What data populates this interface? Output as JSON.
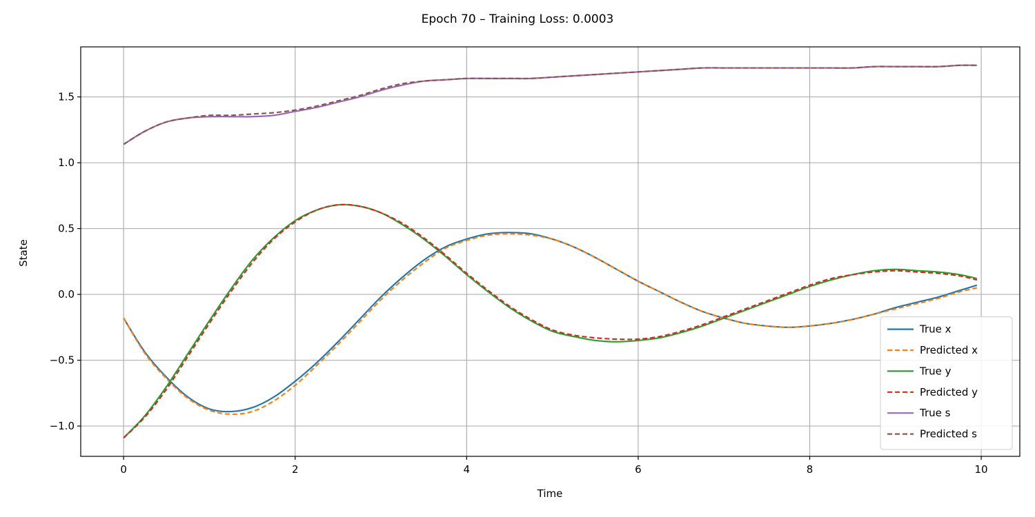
{
  "chart_data": {
    "type": "line",
    "title": "Epoch 70 – Training Loss: 0.0003",
    "xlabel": "Time",
    "ylabel": "State",
    "xlim": [
      -0.5,
      10.45
    ],
    "ylim": [
      -1.23,
      1.88
    ],
    "xticks": [
      0,
      2,
      4,
      6,
      8,
      10
    ],
    "xtick_labels": [
      "0",
      "2",
      "4",
      "6",
      "8",
      "10"
    ],
    "yticks": [
      -1.0,
      -0.5,
      0.0,
      0.5,
      1.0,
      1.5
    ],
    "ytick_labels": [
      "−1.0",
      "−0.5",
      "0.0",
      "0.5",
      "1.0",
      "1.5"
    ],
    "grid": true,
    "legend_position": "lower-right",
    "x": [
      0,
      0.25,
      0.5,
      0.75,
      1.0,
      1.25,
      1.5,
      1.75,
      2.0,
      2.25,
      2.5,
      2.75,
      3.0,
      3.25,
      3.5,
      3.75,
      4.0,
      4.25,
      4.5,
      4.75,
      5.0,
      5.25,
      5.5,
      5.75,
      6.0,
      6.25,
      6.5,
      6.75,
      7.0,
      7.25,
      7.5,
      7.75,
      8.0,
      8.25,
      8.5,
      8.75,
      9.0,
      9.25,
      9.5,
      9.75,
      9.95
    ],
    "series": [
      {
        "name": "True x",
        "color": "#1f77b4",
        "dash": "solid",
        "values": [
          -0.18,
          -0.44,
          -0.63,
          -0.78,
          -0.87,
          -0.89,
          -0.86,
          -0.78,
          -0.66,
          -0.52,
          -0.36,
          -0.19,
          -0.02,
          0.13,
          0.26,
          0.36,
          0.42,
          0.46,
          0.47,
          0.46,
          0.42,
          0.36,
          0.28,
          0.19,
          0.1,
          0.02,
          -0.06,
          -0.13,
          -0.18,
          -0.22,
          -0.24,
          -0.25,
          -0.24,
          -0.22,
          -0.19,
          -0.15,
          -0.1,
          -0.06,
          -0.02,
          0.03,
          0.07
        ]
      },
      {
        "name": "Predicted x",
        "color": "#ff7f0e",
        "dash": "dashed",
        "values": [
          -0.18,
          -0.45,
          -0.64,
          -0.79,
          -0.88,
          -0.91,
          -0.89,
          -0.81,
          -0.69,
          -0.54,
          -0.38,
          -0.21,
          -0.04,
          0.11,
          0.24,
          0.35,
          0.41,
          0.45,
          0.46,
          0.45,
          0.42,
          0.36,
          0.28,
          0.19,
          0.1,
          0.02,
          -0.06,
          -0.13,
          -0.18,
          -0.22,
          -0.24,
          -0.25,
          -0.24,
          -0.22,
          -0.19,
          -0.15,
          -0.11,
          -0.07,
          -0.03,
          0.02,
          0.05
        ]
      },
      {
        "name": "True y",
        "color": "#2ca02c",
        "dash": "solid",
        "values": [
          -1.09,
          -0.92,
          -0.7,
          -0.45,
          -0.2,
          0.04,
          0.26,
          0.43,
          0.56,
          0.64,
          0.68,
          0.67,
          0.62,
          0.53,
          0.42,
          0.29,
          0.15,
          0.02,
          -0.1,
          -0.2,
          -0.28,
          -0.32,
          -0.35,
          -0.36,
          -0.35,
          -0.33,
          -0.29,
          -0.24,
          -0.18,
          -0.12,
          -0.06,
          0.0,
          0.06,
          0.11,
          0.15,
          0.18,
          0.19,
          0.18,
          0.17,
          0.15,
          0.12
        ]
      },
      {
        "name": "Predicted y",
        "color": "#d62728",
        "dash": "dashed",
        "values": [
          -1.09,
          -0.93,
          -0.72,
          -0.47,
          -0.22,
          0.02,
          0.24,
          0.42,
          0.55,
          0.64,
          0.68,
          0.67,
          0.62,
          0.54,
          0.43,
          0.3,
          0.16,
          0.03,
          -0.09,
          -0.19,
          -0.27,
          -0.31,
          -0.33,
          -0.34,
          -0.34,
          -0.32,
          -0.28,
          -0.23,
          -0.17,
          -0.11,
          -0.05,
          0.01,
          0.07,
          0.12,
          0.15,
          0.17,
          0.18,
          0.17,
          0.16,
          0.14,
          0.11
        ]
      },
      {
        "name": "True s",
        "color": "#9467bd",
        "dash": "solid",
        "values": [
          1.14,
          1.24,
          1.31,
          1.34,
          1.35,
          1.35,
          1.35,
          1.36,
          1.39,
          1.42,
          1.46,
          1.5,
          1.55,
          1.59,
          1.62,
          1.63,
          1.64,
          1.64,
          1.64,
          1.64,
          1.65,
          1.66,
          1.67,
          1.68,
          1.69,
          1.7,
          1.71,
          1.72,
          1.72,
          1.72,
          1.72,
          1.72,
          1.72,
          1.72,
          1.72,
          1.73,
          1.73,
          1.73,
          1.73,
          1.74,
          1.74
        ]
      },
      {
        "name": "Predicted s",
        "color": "#8c564b",
        "dash": "dashed",
        "values": [
          1.14,
          1.24,
          1.31,
          1.34,
          1.36,
          1.36,
          1.37,
          1.38,
          1.4,
          1.43,
          1.47,
          1.51,
          1.56,
          1.6,
          1.62,
          1.63,
          1.64,
          1.64,
          1.64,
          1.64,
          1.65,
          1.66,
          1.67,
          1.68,
          1.69,
          1.7,
          1.71,
          1.72,
          1.72,
          1.72,
          1.72,
          1.72,
          1.72,
          1.72,
          1.72,
          1.73,
          1.73,
          1.73,
          1.73,
          1.74,
          1.74
        ]
      }
    ]
  }
}
